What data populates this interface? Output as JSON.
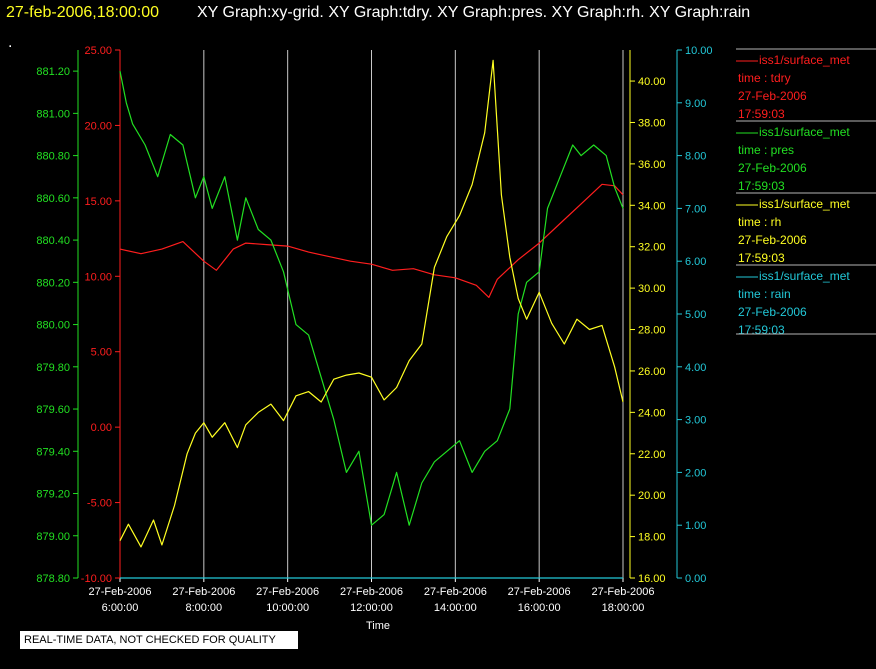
{
  "header": {
    "timestamp": "27-feb-2006,18:00:00",
    "graph_title": "XY Graph:xy-grid.  XY Graph:tdry.  XY Graph:pres.  XY Graph:rh.  XY Graph:rain",
    "marker": "."
  },
  "colors": {
    "tdry": "#ff1e1e",
    "pres": "#22e022",
    "rh": "#ffff22",
    "rain": "#22c8d8",
    "axis_text": "#ffffff",
    "grid": "#c8c8c8"
  },
  "footer": {
    "quality_note": "REAL-TIME DATA, NOT CHECKED FOR QUALITY"
  },
  "legend": [
    {
      "source": "iss1/surface_met",
      "variable": "time : tdry",
      "date": "27-Feb-2006",
      "time": "17:59:03",
      "color": "#ff1e1e"
    },
    {
      "source": "iss1/surface_met",
      "variable": "time : pres",
      "date": "27-Feb-2006",
      "time": "17:59:03",
      "color": "#22e022"
    },
    {
      "source": "iss1/surface_met",
      "variable": "time : rh",
      "date": "27-Feb-2006",
      "time": "17:59:03",
      "color": "#ffff22"
    },
    {
      "source": "iss1/surface_met",
      "variable": "time : rain",
      "date": "27-Feb-2006",
      "time": "17:59:03",
      "color": "#22c8d8"
    }
  ],
  "chart_data": {
    "type": "line",
    "xlabel": "Time",
    "x_ticks": [
      {
        "hour": 6,
        "line1": "27-Feb-2006",
        "line2": "6:00:00"
      },
      {
        "hour": 8,
        "line1": "27-Feb-2006",
        "line2": "8:00:00"
      },
      {
        "hour": 10,
        "line1": "27-Feb-2006",
        "line2": "10:00:00"
      },
      {
        "hour": 12,
        "line1": "27-Feb-2006",
        "line2": "12:00:00"
      },
      {
        "hour": 14,
        "line1": "27-Feb-2006",
        "line2": "14:00:00"
      },
      {
        "hour": 16,
        "line1": "27-Feb-2006",
        "line2": "16:00:00"
      },
      {
        "hour": 18,
        "line1": "27-Feb-2006",
        "line2": "18:00:00"
      }
    ],
    "xlim": [
      6,
      18
    ],
    "grid": true,
    "axes": {
      "tdry": {
        "ylim": [
          -10,
          25
        ],
        "ticks": [
          "-10.00",
          "-5.00",
          "0.00",
          "5.00",
          "10.00",
          "15.00",
          "20.00",
          "25.00"
        ]
      },
      "pres": {
        "ylim": [
          878.8,
          881.3
        ],
        "ticks": [
          "878.80",
          "879.00",
          "879.20",
          "879.40",
          "879.60",
          "879.80",
          "880.00",
          "880.20",
          "880.40",
          "880.60",
          "880.80",
          "881.00",
          "881.20"
        ]
      },
      "rh": {
        "ylim": [
          16,
          41.5
        ],
        "ticks": [
          "16.00",
          "18.00",
          "20.00",
          "22.00",
          "24.00",
          "26.00",
          "28.00",
          "30.00",
          "32.00",
          "34.00",
          "36.00",
          "38.00",
          "40.00"
        ]
      },
      "rain": {
        "ylim": [
          0,
          10
        ],
        "ticks": [
          "0.00",
          "1.00",
          "2.00",
          "3.00",
          "4.00",
          "5.00",
          "6.00",
          "7.00",
          "8.00",
          "9.00",
          "10.00"
        ]
      }
    },
    "series": [
      {
        "name": "tdry",
        "axis": "tdry",
        "x": [
          6.0,
          6.5,
          7.0,
          7.5,
          8.0,
          8.3,
          8.7,
          9.0,
          9.5,
          10.0,
          10.5,
          11.0,
          11.5,
          12.0,
          12.5,
          13.0,
          13.5,
          14.0,
          14.5,
          14.8,
          15.0,
          15.5,
          16.0,
          16.5,
          17.0,
          17.5,
          17.8,
          18.0
        ],
        "y": [
          11.8,
          11.5,
          11.8,
          12.3,
          11.0,
          10.4,
          11.8,
          12.2,
          12.1,
          12.0,
          11.6,
          11.3,
          11.0,
          10.8,
          10.4,
          10.5,
          10.1,
          9.9,
          9.4,
          8.6,
          9.8,
          11.1,
          12.2,
          13.5,
          14.8,
          16.1,
          16.0,
          15.4
        ]
      },
      {
        "name": "pres",
        "axis": "pres",
        "x": [
          6.0,
          6.15,
          6.3,
          6.6,
          6.9,
          7.2,
          7.5,
          7.8,
          8.0,
          8.2,
          8.5,
          8.8,
          9.0,
          9.3,
          9.6,
          9.9,
          10.2,
          10.5,
          10.8,
          11.1,
          11.4,
          11.7,
          12.0,
          12.3,
          12.6,
          12.9,
          13.2,
          13.5,
          13.8,
          14.1,
          14.4,
          14.7,
          15.0,
          15.3,
          15.5,
          15.7,
          16.0,
          16.2,
          16.5,
          16.8,
          17.0,
          17.3,
          17.6,
          17.8,
          18.0
        ],
        "y": [
          881.2,
          881.05,
          880.95,
          880.85,
          880.7,
          880.9,
          880.85,
          880.6,
          880.7,
          880.55,
          880.7,
          880.4,
          880.6,
          880.45,
          880.4,
          880.25,
          880.0,
          879.95,
          879.75,
          879.55,
          879.3,
          879.4,
          879.05,
          879.1,
          879.3,
          879.05,
          879.25,
          879.35,
          879.4,
          879.45,
          879.3,
          879.4,
          879.45,
          879.6,
          880.05,
          880.2,
          880.25,
          880.55,
          880.7,
          880.85,
          880.8,
          880.85,
          880.8,
          880.65,
          880.55
        ]
      },
      {
        "name": "rh",
        "axis": "rh",
        "x": [
          6.0,
          6.2,
          6.5,
          6.8,
          7.0,
          7.3,
          7.6,
          7.8,
          8.0,
          8.2,
          8.5,
          8.8,
          9.0,
          9.3,
          9.6,
          9.9,
          10.2,
          10.5,
          10.8,
          11.1,
          11.4,
          11.7,
          12.0,
          12.3,
          12.6,
          12.9,
          13.2,
          13.5,
          13.8,
          14.1,
          14.4,
          14.7,
          14.9,
          15.1,
          15.3,
          15.5,
          15.7,
          16.0,
          16.3,
          16.6,
          16.9,
          17.2,
          17.5,
          17.8,
          18.0
        ],
        "y": [
          17.8,
          18.6,
          17.5,
          18.8,
          17.6,
          19.5,
          22.0,
          23.0,
          23.5,
          22.8,
          23.5,
          22.3,
          23.4,
          24.0,
          24.4,
          23.6,
          24.8,
          25.0,
          24.5,
          25.6,
          25.8,
          25.9,
          25.7,
          24.6,
          25.2,
          26.5,
          27.3,
          31.0,
          32.5,
          33.5,
          35.0,
          37.5,
          41.0,
          34.5,
          31.5,
          29.5,
          28.5,
          29.8,
          28.3,
          27.3,
          28.5,
          28.0,
          28.2,
          26.2,
          24.5
        ]
      },
      {
        "name": "rain",
        "axis": "rain",
        "x": [
          6.0,
          18.0
        ],
        "y": [
          0.0,
          0.0
        ]
      }
    ]
  }
}
